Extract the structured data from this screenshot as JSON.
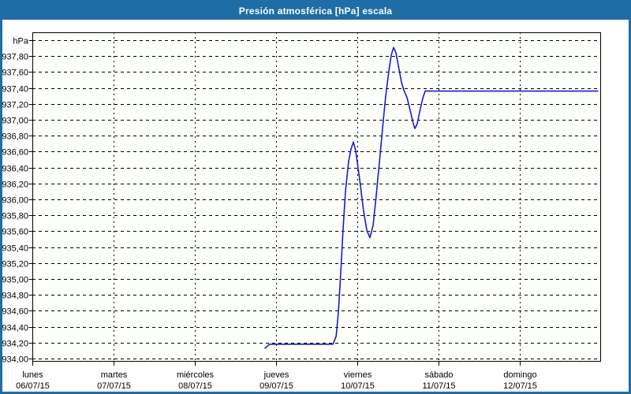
{
  "window": {
    "title": "Presión atmosférica [hPa] escala"
  },
  "colors": {
    "frame": "#1e6da6",
    "titlebar_bg": "#1e6da6",
    "title_text": "#ffffff",
    "plot_bg": "#fdfffa",
    "grid": "#000000",
    "axis": "#000000",
    "label_text": "#000000",
    "line": "#1a1acc"
  },
  "chart_data": {
    "type": "line",
    "title": "Presión atmosférica [hPa] escala",
    "unit_label": "hPa",
    "grid": "dashed",
    "legend": "none",
    "ylim": [
      933.96,
      938.1
    ],
    "ytick_step": 0.2,
    "yticks": {
      "values_start": 938.0,
      "values_step": -0.2,
      "count": 21,
      "labels_top_to_bottom": [
        "",
        "937,80",
        "937,60",
        "937,40",
        "937,20",
        "937,00",
        "936,80",
        "936,60",
        "936,40",
        "936,20",
        "936,00",
        "935,80",
        "935,60",
        "935,40",
        "935,20",
        "935,00",
        "934,80",
        "934,60",
        "934,40",
        "934,20",
        "934,00"
      ]
    },
    "xlim_days": [
      0,
      7
    ],
    "xticks": [
      {
        "day": "lunes",
        "date": "06/07/15"
      },
      {
        "day": "martes",
        "date": "07/07/15"
      },
      {
        "day": "miércoles",
        "date": "08/07/15"
      },
      {
        "day": "jueves",
        "date": "09/07/15"
      },
      {
        "day": "viernes",
        "date": "10/07/15"
      },
      {
        "day": "sábado",
        "date": "11/07/15"
      },
      {
        "day": "domingo",
        "date": "12/07/15"
      }
    ],
    "series": [
      {
        "name": "Presión atmosférica",
        "color": "#1a1acc",
        "points_t_days_v_hpa": [
          [
            2.864,
            934.13
          ],
          [
            2.92,
            934.18
          ],
          [
            3.7,
            934.18
          ],
          [
            3.74,
            934.28
          ],
          [
            3.767,
            934.58
          ],
          [
            3.796,
            935.08
          ],
          [
            3.825,
            935.63
          ],
          [
            3.854,
            936.1
          ],
          [
            3.893,
            936.48
          ],
          [
            3.922,
            936.63
          ],
          [
            3.951,
            936.72
          ],
          [
            3.981,
            936.61
          ],
          [
            4.029,
            936.25
          ],
          [
            4.078,
            935.85
          ],
          [
            4.117,
            935.61
          ],
          [
            4.155,
            935.52
          ],
          [
            4.194,
            935.67
          ],
          [
            4.233,
            936.05
          ],
          [
            4.272,
            936.46
          ],
          [
            4.311,
            936.89
          ],
          [
            4.35,
            937.3
          ],
          [
            4.388,
            937.61
          ],
          [
            4.417,
            937.81
          ],
          [
            4.447,
            937.91
          ],
          [
            4.476,
            937.84
          ],
          [
            4.515,
            937.63
          ],
          [
            4.544,
            937.47
          ],
          [
            4.573,
            937.37
          ],
          [
            4.612,
            937.28
          ],
          [
            4.65,
            937.12
          ],
          [
            4.689,
            936.95
          ],
          [
            4.709,
            936.89
          ],
          [
            4.738,
            936.95
          ],
          [
            4.767,
            937.1
          ],
          [
            4.806,
            937.27
          ],
          [
            4.835,
            937.36
          ],
          [
            6.96,
            937.36
          ]
        ]
      }
    ]
  }
}
